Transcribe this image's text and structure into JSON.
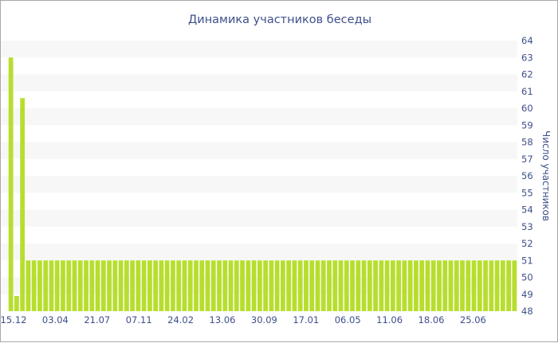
{
  "chart_data": {
    "type": "bar",
    "title": "Динамика участников беседы",
    "xlabel": "",
    "ylabel": "Число участников",
    "y_axis_side": "right",
    "ylim": [
      48,
      64
    ],
    "y_ticks": [
      48,
      49,
      50,
      51,
      52,
      53,
      54,
      55,
      56,
      57,
      58,
      59,
      60,
      61,
      62,
      63,
      64
    ],
    "x_tick_labels": [
      "15.12",
      "03.04",
      "21.07",
      "07.11",
      "24.02",
      "13.06",
      "30.09",
      "17.01",
      "06.05",
      "11.06",
      "18.06",
      "25.06"
    ],
    "grid": "horizontal alternating bands",
    "bar_color": "#b7de2e",
    "band_color": "#f7f7f7",
    "series": [
      {
        "values": [
          63,
          48.9,
          60.6,
          51,
          51,
          51,
          51,
          51,
          51,
          51,
          51,
          51,
          51,
          51,
          51,
          51,
          51,
          51,
          51,
          51,
          51,
          51,
          51,
          51,
          51,
          51,
          51,
          51,
          51,
          51,
          51,
          51,
          51,
          51,
          51,
          51,
          51,
          51,
          51,
          51,
          51,
          51,
          51,
          51,
          51,
          51,
          51,
          51,
          51,
          51,
          51,
          51,
          51,
          51,
          51,
          51,
          51,
          51,
          51,
          51,
          51,
          51,
          51,
          51,
          51,
          51,
          51,
          51,
          51,
          51,
          51,
          51,
          51,
          51,
          51,
          51,
          51,
          51,
          51,
          51,
          51,
          51,
          51,
          51,
          51,
          51,
          51,
          51
        ]
      }
    ]
  }
}
